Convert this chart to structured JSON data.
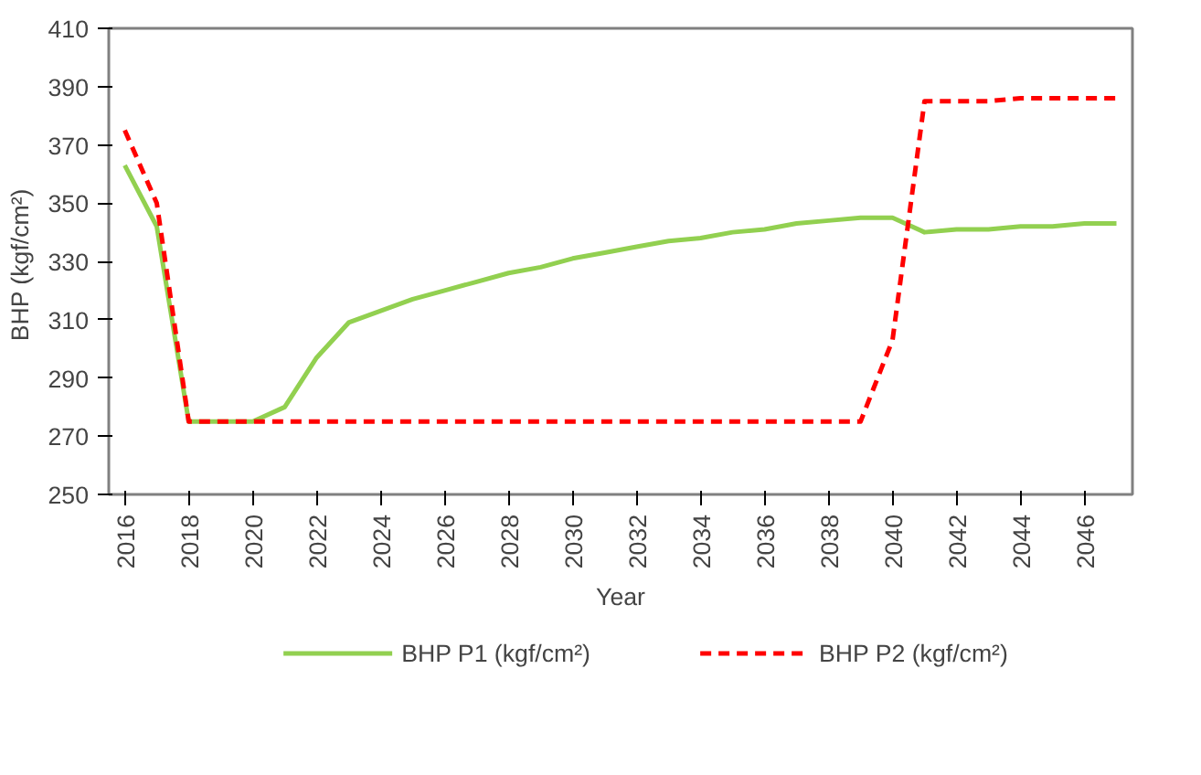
{
  "chart_data": {
    "type": "line",
    "xlabel": "Year",
    "ylabel": "BHP  (kgf/cm²)",
    "x": [
      2016,
      2017,
      2018,
      2019,
      2020,
      2021,
      2022,
      2023,
      2024,
      2025,
      2026,
      2027,
      2028,
      2029,
      2030,
      2031,
      2032,
      2033,
      2034,
      2035,
      2036,
      2037,
      2038,
      2039,
      2040,
      2041,
      2042,
      2043,
      2044,
      2045,
      2046,
      2047
    ],
    "series": [
      {
        "name": "BHP P1 (kgf/cm²)",
        "color": "#92d050",
        "line_style": "solid",
        "values": [
          363,
          342,
          275,
          275,
          275,
          280,
          297,
          309,
          313,
          317,
          320,
          323,
          326,
          328,
          331,
          333,
          335,
          337,
          338,
          340,
          341,
          343,
          344,
          345,
          345,
          340,
          341,
          341,
          342,
          342,
          343,
          343
        ]
      },
      {
        "name": "BHP P2 (kgf/cm²)",
        "color": "#ff0000",
        "line_style": "dashed",
        "values": [
          375,
          350,
          275,
          275,
          275,
          275,
          275,
          275,
          275,
          275,
          275,
          275,
          275,
          275,
          275,
          275,
          275,
          275,
          275,
          275,
          275,
          275,
          275,
          275,
          303,
          385,
          385,
          385,
          386,
          386,
          386,
          386
        ]
      }
    ],
    "xlim": [
      2015.5,
      2047.5
    ],
    "xticks": [
      2016,
      2018,
      2020,
      2022,
      2024,
      2026,
      2028,
      2030,
      2032,
      2034,
      2036,
      2038,
      2040,
      2042,
      2044,
      2046
    ],
    "ylim": [
      250,
      410
    ],
    "yticks": [
      250,
      270,
      290,
      310,
      330,
      350,
      370,
      390,
      410
    ],
    "grid": false,
    "legend": "bottom",
    "marker": "none"
  }
}
